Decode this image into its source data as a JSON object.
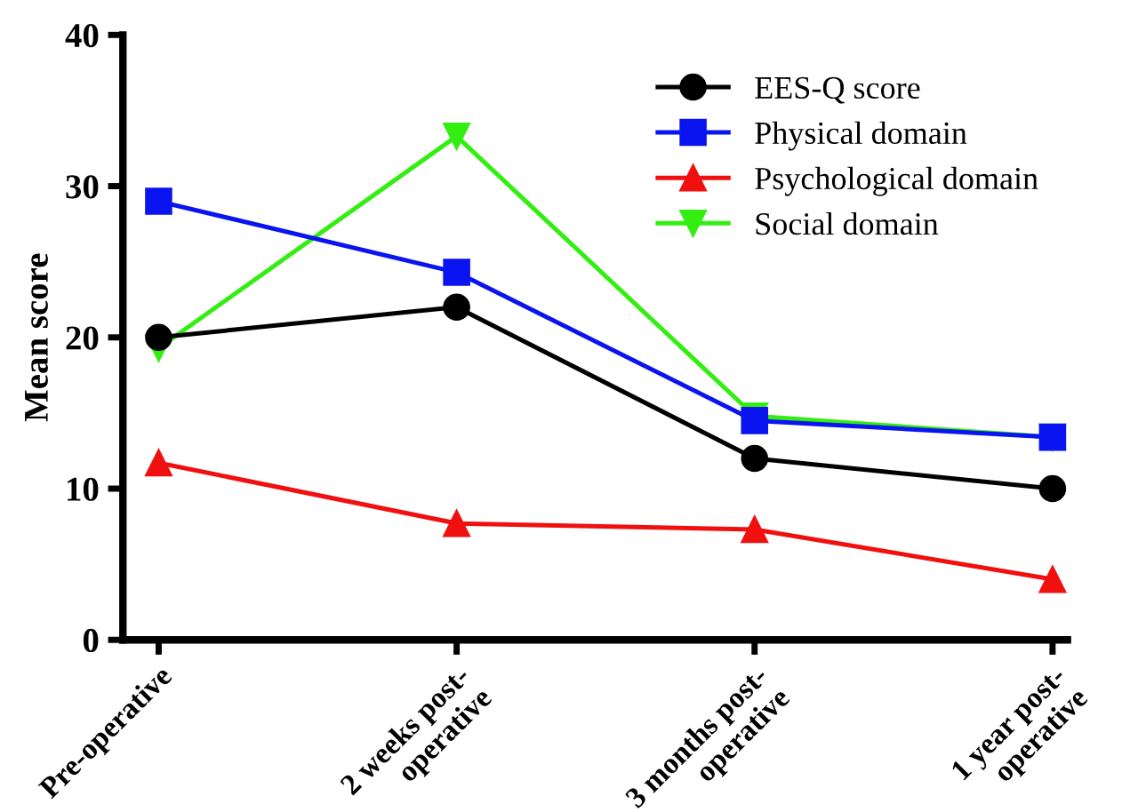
{
  "chart_data": {
    "type": "line",
    "ylabel": "Mean score",
    "categories": [
      "Pre-operative",
      "2 weeks post-\noperative",
      "3 months post-\noperative",
      "1 year post-\noperative"
    ],
    "ylim": [
      0,
      40
    ],
    "yticks": [
      0,
      10,
      20,
      30,
      40
    ],
    "grid": false,
    "legend": "top right",
    "line_style": "solid",
    "series": [
      {
        "name": "Social domain",
        "color": "#33ee11",
        "marker": "triangle_down",
        "values": [
          19.3,
          33.3,
          14.8,
          13.4
        ]
      },
      {
        "name": "EES-Q score",
        "color": "#000000",
        "marker": "circle",
        "values": [
          20,
          22,
          12,
          10
        ]
      },
      {
        "name": "Physical domain",
        "color": "#0a14f0",
        "marker": "square",
        "values": [
          29,
          24.3,
          14.5,
          13.4
        ]
      },
      {
        "name": "Psychological domain",
        "color": "#f01010",
        "marker": "triangle",
        "values": [
          11.7,
          7.7,
          7.3,
          4.0
        ]
      }
    ]
  }
}
